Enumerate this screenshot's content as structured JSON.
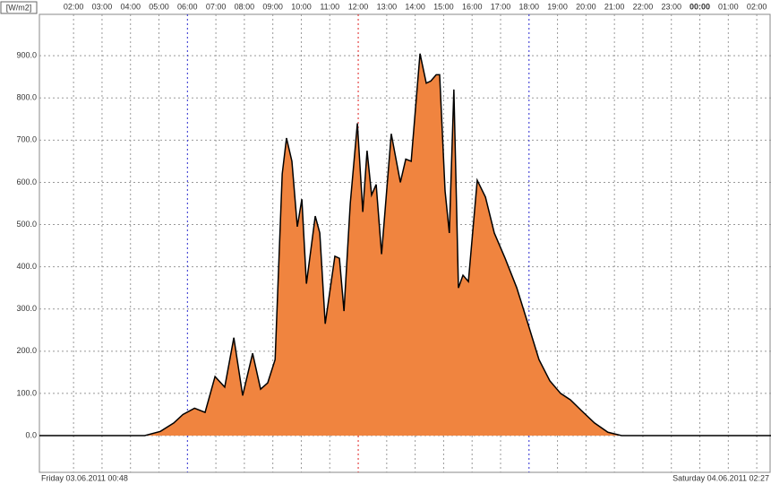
{
  "chart_data": {
    "type": "area",
    "y_label": "[W/m2]",
    "start_label": "Friday 03.06.2011 00:48",
    "end_label": "Saturday 04.06.2011 02:27",
    "color": "#f0843f",
    "line_color": "#000000",
    "grid": true,
    "xlim": [
      0.8,
      26.5
    ],
    "ylim": [
      -87,
      998
    ],
    "xticks": [
      {
        "value": 2,
        "label": "02:00"
      },
      {
        "value": 3,
        "label": "03:00"
      },
      {
        "value": 4,
        "label": "04:00"
      },
      {
        "value": 5,
        "label": "05:00"
      },
      {
        "value": 6,
        "label": "06:00",
        "color": "#2a2ad0"
      },
      {
        "value": 7,
        "label": "07:00"
      },
      {
        "value": 8,
        "label": "08:00"
      },
      {
        "value": 9,
        "label": "09:00"
      },
      {
        "value": 10,
        "label": "10:00"
      },
      {
        "value": 11,
        "label": "11:00"
      },
      {
        "value": 12,
        "label": "12:00",
        "color": "#e02020"
      },
      {
        "value": 13,
        "label": "13:00"
      },
      {
        "value": 14,
        "label": "14:00"
      },
      {
        "value": 15,
        "label": "15:00"
      },
      {
        "value": 16,
        "label": "16:00"
      },
      {
        "value": 17,
        "label": "17:00"
      },
      {
        "value": 18,
        "label": "18:00",
        "color": "#2a2ad0"
      },
      {
        "value": 19,
        "label": "19:00"
      },
      {
        "value": 20,
        "label": "20:00"
      },
      {
        "value": 21,
        "label": "21:00"
      },
      {
        "value": 22,
        "label": "22:00"
      },
      {
        "value": 23,
        "label": "23:00"
      },
      {
        "value": 24,
        "label": "00:00",
        "bold": true
      },
      {
        "value": 25,
        "label": "01:00"
      },
      {
        "value": 26,
        "label": "02:00"
      }
    ],
    "yticks": [
      {
        "value": 0,
        "label": "0.0"
      },
      {
        "value": 100,
        "label": "100.0"
      },
      {
        "value": 200,
        "label": "200.0"
      },
      {
        "value": 300,
        "label": "300.0"
      },
      {
        "value": 400,
        "label": "400.0"
      },
      {
        "value": 500,
        "label": "500.0"
      },
      {
        "value": 600,
        "label": "600.0"
      },
      {
        "value": 700,
        "label": "700.0"
      },
      {
        "value": 800,
        "label": "800.0"
      },
      {
        "value": 900,
        "label": "900.0"
      }
    ],
    "x": [
      0.8,
      4.5,
      5.05,
      5.52,
      5.84,
      6.25,
      6.62,
      6.97,
      7.31,
      7.63,
      7.94,
      8.29,
      8.57,
      8.82,
      9.08,
      9.33,
      9.48,
      9.67,
      9.86,
      10.02,
      10.18,
      10.49,
      10.65,
      10.84,
      11.18,
      11.34,
      11.5,
      11.72,
      11.97,
      12.16,
      12.31,
      12.47,
      12.63,
      12.82,
      13.16,
      13.48,
      13.67,
      13.86,
      14.17,
      14.39,
      14.55,
      14.74,
      14.86,
      15.05,
      15.2,
      15.36,
      15.52,
      15.68,
      15.87,
      16.18,
      16.47,
      16.78,
      17.16,
      17.57,
      17.94,
      18.35,
      18.73,
      19.11,
      19.45,
      19.83,
      20.3,
      20.77,
      21.25,
      26.5
    ],
    "values": [
      0,
      0,
      10,
      30,
      50,
      65,
      55,
      140,
      115,
      232,
      95,
      195,
      110,
      125,
      180,
      620,
      705,
      650,
      495,
      560,
      360,
      520,
      480,
      265,
      425,
      420,
      295,
      550,
      740,
      530,
      675,
      570,
      595,
      430,
      715,
      600,
      655,
      650,
      905,
      835,
      840,
      855,
      855,
      580,
      480,
      820,
      350,
      380,
      365,
      605,
      565,
      480,
      420,
      350,
      270,
      180,
      130,
      100,
      85,
      60,
      30,
      8,
      0,
      0
    ]
  }
}
